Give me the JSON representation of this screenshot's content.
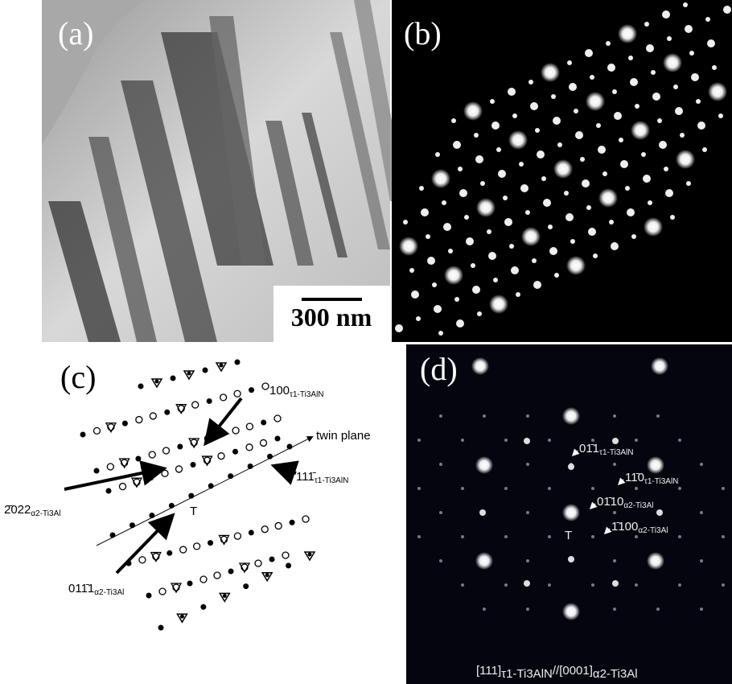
{
  "panels": [
    {
      "label": "(a)",
      "scale_bar": "300 nm"
    },
    {
      "label": "(b)"
    },
    {
      "label": "(c)",
      "annotations": [
        {
          "text": "100",
          "subscript": "τ1-Ti3AlN"
        },
        {
          "text": "twin plane"
        },
        {
          "text": "111̄",
          "subscript": "τ1-Ti3AlN"
        },
        {
          "text": "2̄022",
          "subscript": "α2-Ti3Al"
        },
        {
          "text": "T"
        },
        {
          "text": "011̄1",
          "subscript": "α2-Ti3Al"
        }
      ]
    },
    {
      "label": "(d)",
      "annotations": [
        {
          "text": "01̄1",
          "subscript": "τ1-Ti3AlN"
        },
        {
          "text": "11̄0",
          "subscript": "τ1-Ti3AlN"
        },
        {
          "text": "01̄10",
          "subscript": "α2-Ti3Al"
        },
        {
          "text": "1̄100",
          "subscript": "α2-Ti3Al"
        },
        {
          "text": "T"
        }
      ],
      "zone_axis": [
        {
          "text": "[111]",
          "subscript": "τ1-Ti3AlN"
        },
        {
          "text": "//[0001]",
          "subscript": "α2-Ti3Al"
        }
      ]
    }
  ]
}
